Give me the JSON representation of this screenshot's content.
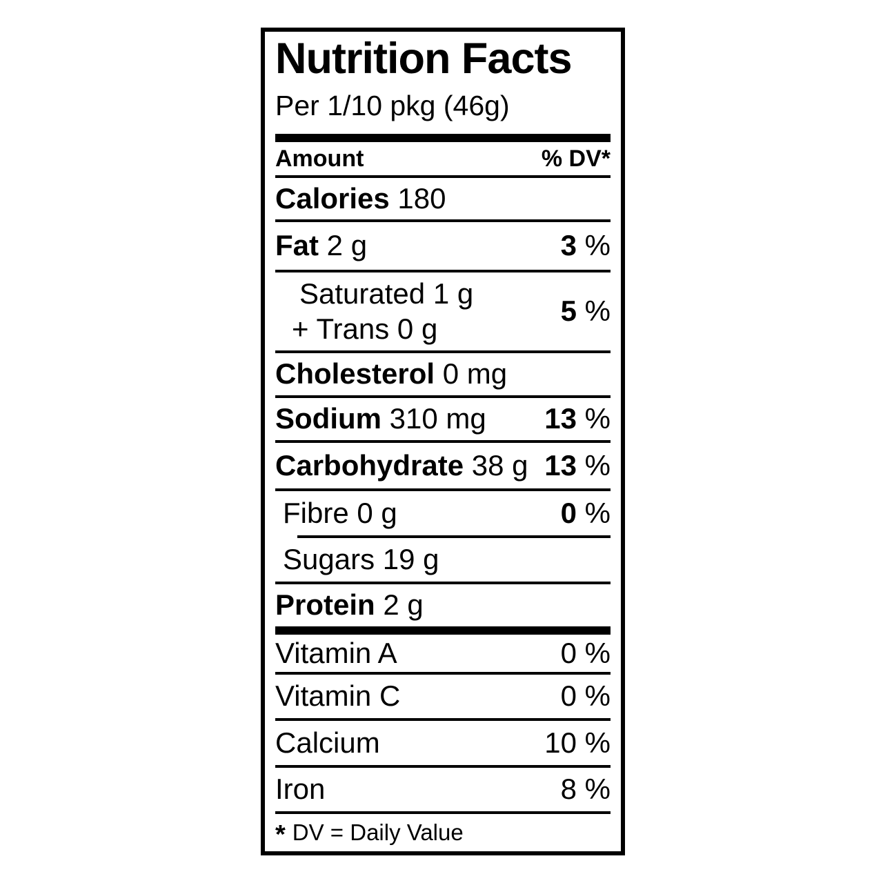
{
  "label": {
    "title": "Nutrition Facts",
    "serving": "Per 1/10 pkg (46g)",
    "columns": {
      "amount": "Amount",
      "dv": "% DV*"
    },
    "percent_sign": "%",
    "calories": {
      "name": "Calories",
      "value": "180"
    },
    "nutrients": [
      {
        "name": "Fat",
        "amount": "2 g",
        "dv": "3"
      },
      {
        "name": "Saturated",
        "amount": "1 g",
        "name2": "+ Trans",
        "amount2": "0 g",
        "dv": "5"
      },
      {
        "name": "Cholesterol",
        "amount": "0 mg"
      },
      {
        "name": "Sodium",
        "amount": "310 mg",
        "dv": "13"
      },
      {
        "name": "Carbohydrate",
        "amount": "38 g",
        "dv": "13"
      },
      {
        "name": "Fibre",
        "amount": "0 g",
        "dv": "0"
      },
      {
        "name": "Sugars",
        "amount": "19 g"
      },
      {
        "name": "Protein",
        "amount": "2 g"
      }
    ],
    "micronutrients": [
      {
        "name": "Vitamin A",
        "dv": "0"
      },
      {
        "name": "Vitamin C",
        "dv": "0"
      },
      {
        "name": "Calcium",
        "dv": "10"
      },
      {
        "name": "Iron",
        "dv": "8"
      }
    ],
    "footnote": {
      "star": "*",
      "text": "DV = Daily Value"
    },
    "colors": {
      "text": "#000000",
      "background": "#ffffff",
      "rule": "#000000"
    }
  }
}
